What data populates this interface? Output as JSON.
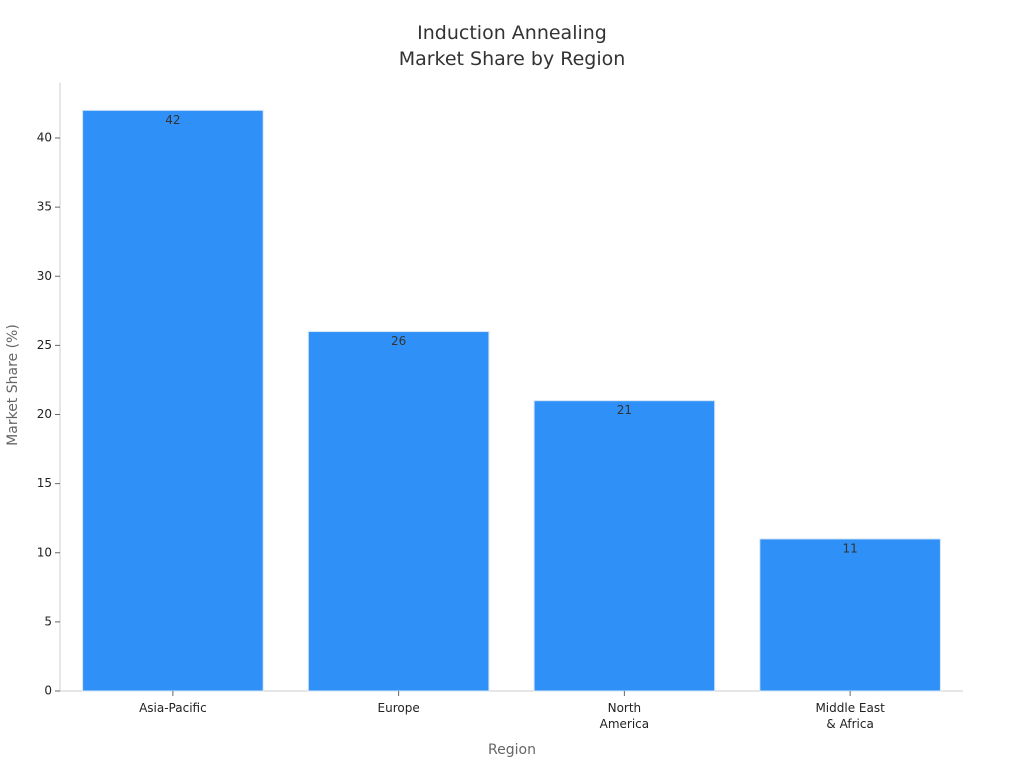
{
  "chart_data": {
    "type": "bar",
    "title": [
      "Induction Annealing",
      "Market Share by Region"
    ],
    "x_label": "Region",
    "y_label": "Market Share (%)",
    "categories": [
      "Asia-Pacific",
      "Europe",
      "North\nAmerica",
      "Middle East\n& Africa"
    ],
    "values": [
      42,
      26,
      21,
      11
    ],
    "color": "#2f91f8",
    "ylim": [
      0,
      44
    ],
    "yticks": [
      0,
      5,
      10,
      15,
      20,
      25,
      30,
      35,
      40
    ],
    "grid": false
  }
}
